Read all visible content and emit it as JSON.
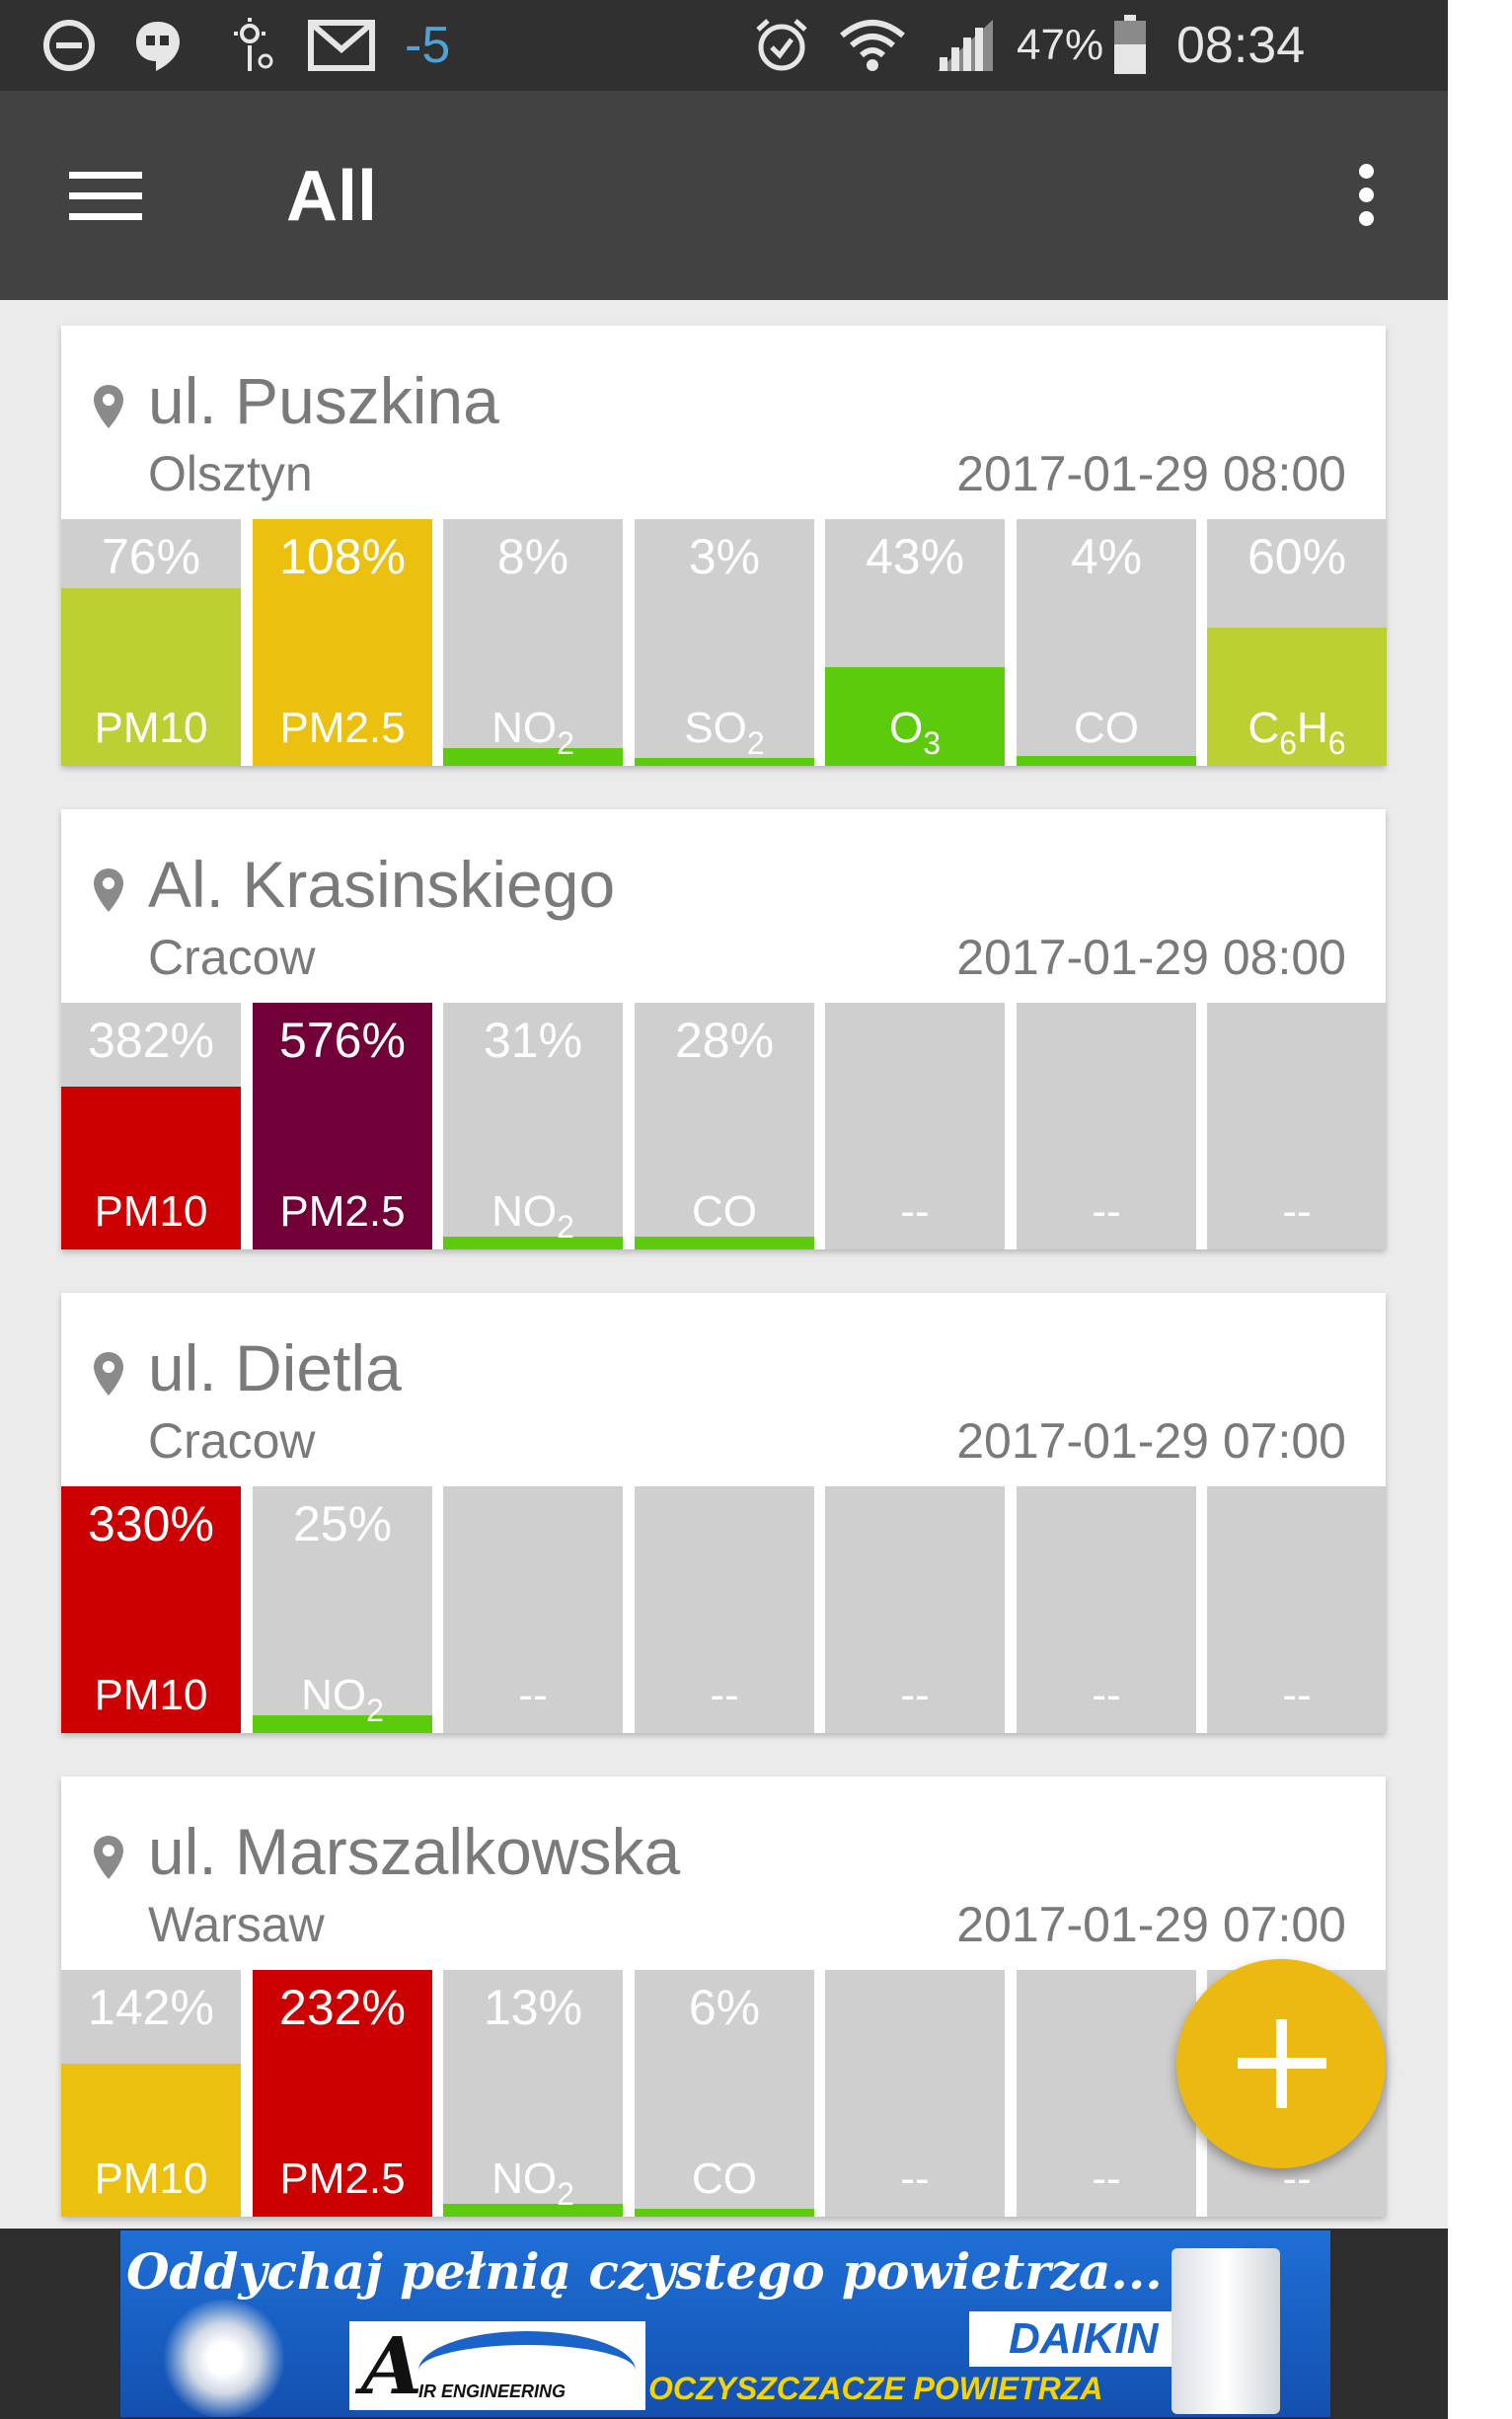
{
  "status_bar": {
    "notification_count": "-5",
    "battery": "47%",
    "time": "08:34",
    "icons": [
      "do-not-disturb-icon",
      "hangouts-icon",
      "weather-icon",
      "gmail-icon",
      "alarm-icon",
      "wifi-icon",
      "signal-icon",
      "battery-icon"
    ]
  },
  "app_bar": {
    "title": "All",
    "menu_icon": "hamburger-menu-icon",
    "overflow_icon": "more-vert-icon"
  },
  "colors": {
    "good": "#5ccb0c",
    "moderate": "#bdd033",
    "sufficient": "#ecc00e",
    "bad": "#cc0000",
    "very_bad": "#720038",
    "empty": "#cfcfcf"
  },
  "stations": [
    {
      "street": "ul. Puszkina",
      "city": "Olsztyn",
      "time": "2017-01-29 08:00",
      "readings": [
        {
          "pct": "76%",
          "name": "PM10",
          "sub": "",
          "level": 0.72,
          "color": "#bdd033"
        },
        {
          "pct": "108%",
          "name": "PM2.5",
          "sub": "",
          "level": 1.0,
          "color": "#ecc00e"
        },
        {
          "pct": "8%",
          "name": "NO",
          "sub": "2",
          "level": 0.07,
          "color": "#5ccb0c"
        },
        {
          "pct": "3%",
          "name": "SO",
          "sub": "2",
          "level": 0.03,
          "color": "#5ccb0c"
        },
        {
          "pct": "43%",
          "name": "O",
          "sub": "3",
          "level": 0.4,
          "color": "#5ccb0c"
        },
        {
          "pct": "4%",
          "name": "CO",
          "sub": "",
          "level": 0.04,
          "color": "#5ccb0c"
        },
        {
          "pct": "60%",
          "name": "C",
          "sub": "6",
          "name2": "H",
          "sub2": "6",
          "level": 0.56,
          "color": "#bdd033"
        }
      ]
    },
    {
      "street": "Al. Krasinskiego",
      "city": "Cracow",
      "time": "2017-01-29 08:00",
      "readings": [
        {
          "pct": "382%",
          "name": "PM10",
          "sub": "",
          "level": 0.66,
          "color": "#cc0000"
        },
        {
          "pct": "576%",
          "name": "PM2.5",
          "sub": "",
          "level": 1.0,
          "color": "#720038"
        },
        {
          "pct": "31%",
          "name": "NO",
          "sub": "2",
          "level": 0.05,
          "color": "#5ccb0c"
        },
        {
          "pct": "28%",
          "name": "CO",
          "sub": "",
          "level": 0.05,
          "color": "#5ccb0c"
        },
        {
          "pct": "",
          "name": "--",
          "sub": "",
          "level": 0,
          "color": "#cfcfcf"
        },
        {
          "pct": "",
          "name": "--",
          "sub": "",
          "level": 0,
          "color": "#cfcfcf"
        },
        {
          "pct": "",
          "name": "--",
          "sub": "",
          "level": 0,
          "color": "#cfcfcf"
        }
      ]
    },
    {
      "street": "ul. Dietla",
      "city": "Cracow",
      "time": "2017-01-29 07:00",
      "readings": [
        {
          "pct": "330%",
          "name": "PM10",
          "sub": "",
          "level": 1.0,
          "color": "#cc0000"
        },
        {
          "pct": "25%",
          "name": "NO",
          "sub": "2",
          "level": 0.07,
          "color": "#5ccb0c"
        },
        {
          "pct": "",
          "name": "--",
          "sub": "",
          "level": 0,
          "color": "#cfcfcf"
        },
        {
          "pct": "",
          "name": "--",
          "sub": "",
          "level": 0,
          "color": "#cfcfcf"
        },
        {
          "pct": "",
          "name": "--",
          "sub": "",
          "level": 0,
          "color": "#cfcfcf"
        },
        {
          "pct": "",
          "name": "--",
          "sub": "",
          "level": 0,
          "color": "#cfcfcf"
        },
        {
          "pct": "",
          "name": "--",
          "sub": "",
          "level": 0,
          "color": "#cfcfcf"
        }
      ]
    },
    {
      "street": "ul. Marszalkowska",
      "city": "Warsaw",
      "time": "2017-01-29 07:00",
      "readings": [
        {
          "pct": "142%",
          "name": "PM10",
          "sub": "",
          "level": 0.62,
          "color": "#ecc00e"
        },
        {
          "pct": "232%",
          "name": "PM2.5",
          "sub": "",
          "level": 1.0,
          "color": "#cc0000"
        },
        {
          "pct": "13%",
          "name": "NO",
          "sub": "2",
          "level": 0.05,
          "color": "#5ccb0c"
        },
        {
          "pct": "6%",
          "name": "CO",
          "sub": "",
          "level": 0.03,
          "color": "#5ccb0c"
        },
        {
          "pct": "",
          "name": "--",
          "sub": "",
          "level": 0,
          "color": "#cfcfcf"
        },
        {
          "pct": "",
          "name": "--",
          "sub": "",
          "level": 0,
          "color": "#cfcfcf"
        },
        {
          "pct": "",
          "name": "--",
          "sub": "",
          "level": 0,
          "color": "#cfcfcf"
        }
      ]
    }
  ],
  "fab": {
    "icon": "plus-icon"
  },
  "ad": {
    "line1": "Oddychaj pełnią czystego powietrza...",
    "logo_letter": "A",
    "logo_text": "IR ENGINEERING",
    "brand": "DAIKIN",
    "line2": "OCZYSZCZACZE POWIETRZA"
  }
}
